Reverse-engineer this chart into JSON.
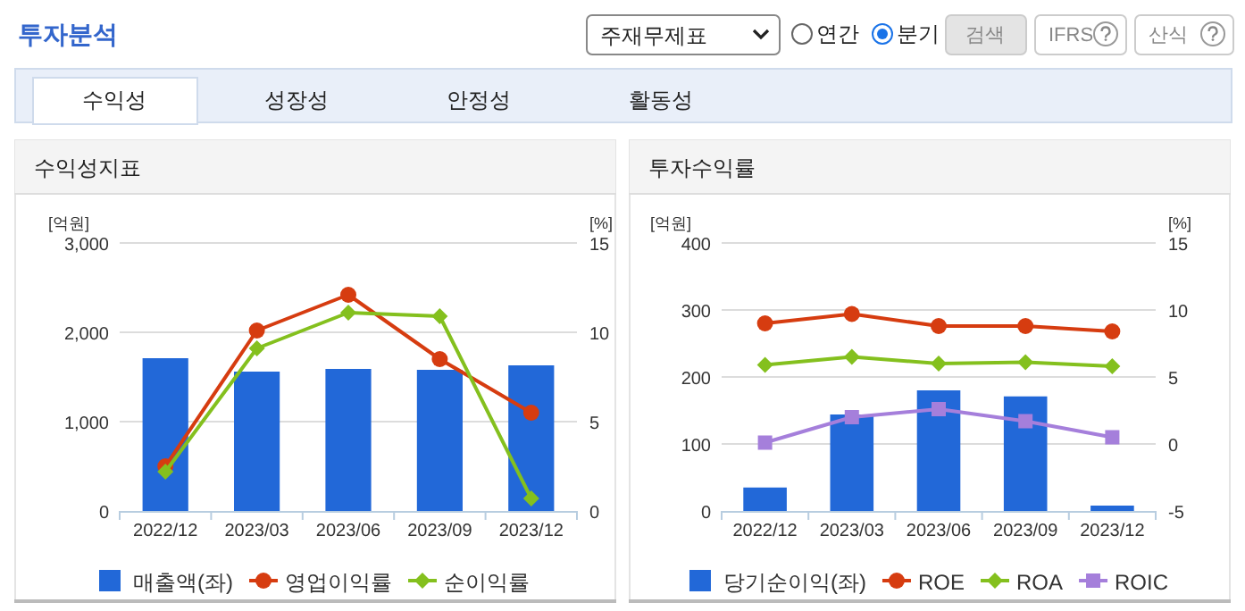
{
  "chart_data": [
    {
      "type": "other",
      "title": "투자분석",
      "annotations": [
        "주재무제표",
        "연간",
        "분기",
        "검색",
        "IFRS",
        "산식",
        "수익성",
        "성장성",
        "안정성",
        "활동성"
      ]
    },
    {
      "type": "bar",
      "title": "수익성지표",
      "ylabel": "[억원]",
      "y2label": "[%]",
      "categories": [
        "2022/12",
        "2023/03",
        "2023/06",
        "2023/09",
        "2023/12"
      ],
      "ylim": [
        0,
        3000
      ],
      "yticks": [
        0,
        {
          "value": 1000,
          "label": "1,000"
        },
        {
          "value": 2000,
          "label": "2,000"
        },
        {
          "value": 3000,
          "label": "3,000"
        }
      ],
      "y2lim": [
        0,
        15
      ],
      "y2ticks": [
        0,
        5,
        10,
        15
      ],
      "grid": "y",
      "legend": "bottom",
      "series": [
        {
          "name": "매출액(좌)",
          "type": "bar",
          "color": "#2268d8",
          "values": [
            1710,
            1560,
            1590,
            1580,
            1630
          ]
        },
        {
          "name": "영업이익률",
          "type": "line",
          "axis": "y2",
          "marker": "circle",
          "color": "#d63c10",
          "values": [
            2.5,
            10.1,
            12.1,
            8.5,
            5.5
          ]
        },
        {
          "name": "순이익률",
          "type": "line",
          "axis": "y2",
          "marker": "diamond",
          "color": "#84c01e",
          "values": [
            2.2,
            9.1,
            11.1,
            10.9,
            0.7
          ]
        }
      ]
    },
    {
      "type": "bar",
      "title": "투자수익률",
      "ylabel": "[억원]",
      "y2label": "[%]",
      "categories": [
        "2022/12",
        "2023/03",
        "2023/06",
        "2023/09",
        "2023/12"
      ],
      "ylim": [
        0,
        400
      ],
      "yticks": [
        0,
        100,
        200,
        300,
        400
      ],
      "y2lim": [
        -5,
        15
      ],
      "y2ticks": [
        -5,
        0,
        5,
        10,
        15
      ],
      "grid": "y",
      "legend": "bottom",
      "series": [
        {
          "name": "당기순이익(좌)",
          "type": "bar",
          "color": "#2268d8",
          "values": [
            35,
            144,
            180,
            171,
            8
          ]
        },
        {
          "name": "ROE",
          "type": "line",
          "axis": "y2",
          "marker": "circle",
          "color": "#d63c10",
          "values": [
            9.0,
            9.7,
            8.8,
            8.8,
            8.4
          ]
        },
        {
          "name": "ROA",
          "type": "line",
          "axis": "y2",
          "marker": "diamond",
          "color": "#84c01e",
          "values": [
            5.9,
            6.5,
            6.0,
            6.1,
            5.8
          ]
        },
        {
          "name": "ROIC",
          "type": "line",
          "axis": "y2",
          "marker": "square",
          "color": "#a57fdb",
          "values": [
            0.1,
            2.0,
            2.6,
            1.7,
            0.5
          ]
        }
      ]
    }
  ]
}
